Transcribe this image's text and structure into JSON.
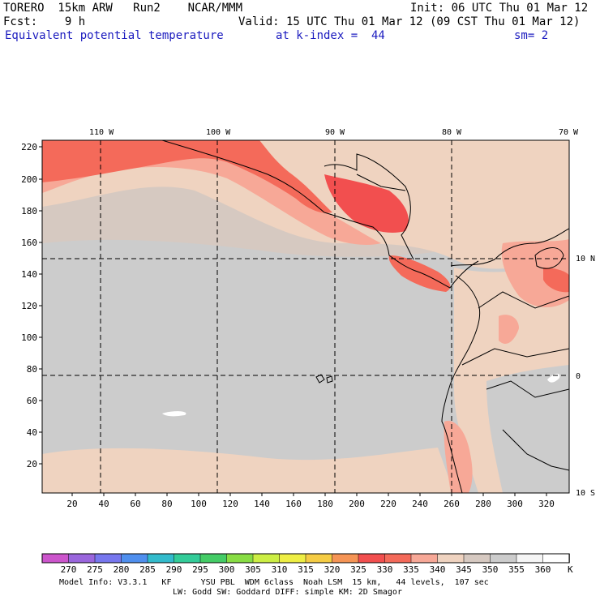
{
  "header": {
    "line1_left": "TORERO  15km ARW   Run2    NCAR/MMM",
    "line1_right": "Init: 06 UTC Thu 01 Mar 12",
    "line2_left": "Fcst:    9 h",
    "line2_right": "Valid: 15 UTC Thu 01 Mar 12 (09 CST Thu 01 Mar 12)",
    "line3_field": "Equivalent potential temperature",
    "line3_level": "at k-index =  44",
    "line3_smooth": "sm= 2"
  },
  "map": {
    "lon_labels": [
      "110 W",
      "100 W",
      "90 W",
      "80 W",
      "70 W"
    ],
    "lat_labels": [
      "10 N",
      "0",
      "10 S"
    ],
    "y_axis_ticks": [
      "220",
      "200",
      "180",
      "160",
      "140",
      "120",
      "100",
      "80",
      "60",
      "40",
      "20"
    ],
    "x_axis_ticks": [
      "20",
      "40",
      "60",
      "80",
      "100",
      "120",
      "140",
      "160",
      "180",
      "200",
      "220",
      "240",
      "260",
      "280",
      "300",
      "320"
    ]
  },
  "colorbar": {
    "unit": "K",
    "labels": [
      "270",
      "275",
      "280",
      "285",
      "290",
      "295",
      "300",
      "305",
      "310",
      "315",
      "320",
      "325",
      "330",
      "335",
      "340",
      "345",
      "350",
      "355",
      "360"
    ],
    "colors": [
      "#cc55cc",
      "#9a66dd",
      "#7777ee",
      "#4f8fee",
      "#33bbcc",
      "#33cc99",
      "#44cc66",
      "#88dd44",
      "#ccee44",
      "#eeee44",
      "#f5cc44",
      "#f59455",
      "#f24f4f",
      "#f46a5a",
      "#f7a897",
      "#efd3c0",
      "#d6c9c1",
      "#cccccc",
      "#f5f5f5",
      "#ffffff"
    ]
  },
  "footer": {
    "line1": "Model Info: V3.3.1   KF      YSU PBL  WDM 6class  Noah LSM  15 km,   44 levels,  107 sec",
    "line2": "LW: Godd SW: Goddard DIFF: simple KM: 2D Smagor"
  }
}
